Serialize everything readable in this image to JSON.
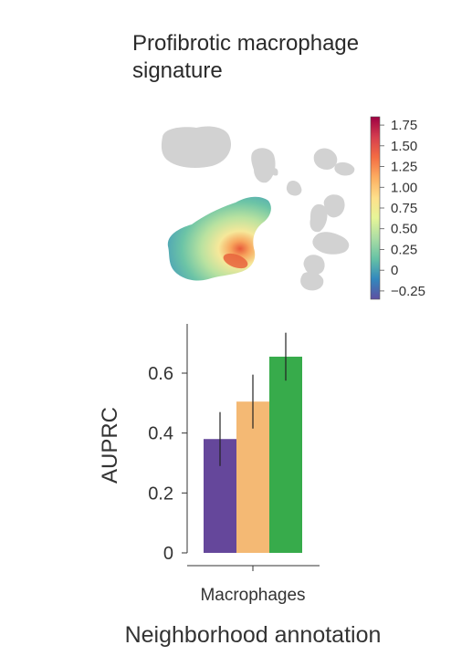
{
  "title": "Profibrotic macrophage signature",
  "title_line1": "Profibrotic macrophage",
  "title_line2": "signature",
  "colorbar": {
    "ticks": [
      "1.75",
      "1.50",
      "1.25",
      "1.00",
      "0.75",
      "0.50",
      "0.25",
      "0",
      "−0.25"
    ],
    "range": [
      -0.35,
      1.85
    ],
    "colormap": "spectral_r",
    "colors": [
      "#5e4fa2",
      "#3288bd",
      "#66c2a5",
      "#abdda4",
      "#e6f598",
      "#fee08b",
      "#fdae61",
      "#f46d43",
      "#d53e4f",
      "#9e0142"
    ]
  },
  "chart_data": {
    "type": "bar",
    "categories": [
      "Macrophages"
    ],
    "series": [
      {
        "values": [
          0.38
        ],
        "error": [
          0.09
        ],
        "color": "#65479b"
      },
      {
        "values": [
          0.505
        ],
        "error": [
          0.09
        ],
        "color": "#f4b974"
      },
      {
        "values": [
          0.655
        ],
        "error": [
          0.08
        ],
        "color": "#37ab4b"
      }
    ],
    "ylabel": "AUPRC",
    "xlabel": "Neighborhood annotation",
    "yticks": [
      "0",
      "0.2",
      "0.4",
      "0.6"
    ],
    "ylim": [
      0,
      0.76
    ]
  }
}
